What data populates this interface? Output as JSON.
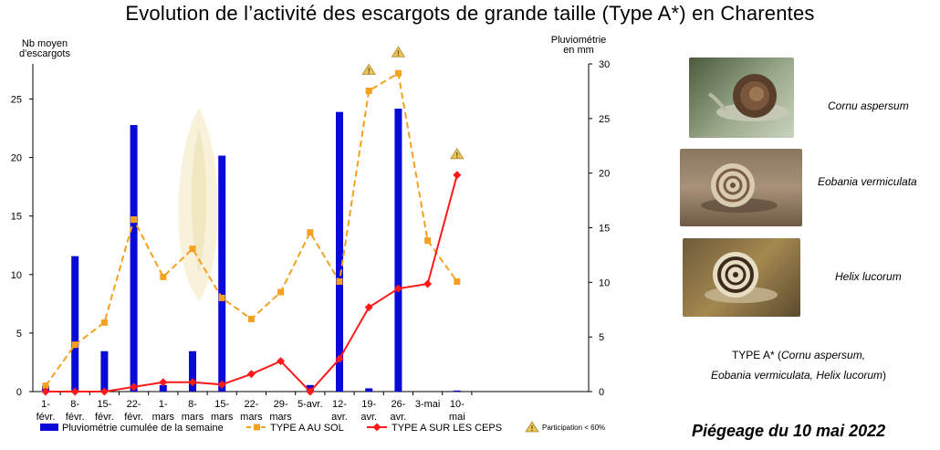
{
  "title": "Evolution de l’activité des escargots de grande taille (Type A*) en Charentes",
  "chart_data": {
    "type": "bar",
    "title": "Evolution de l’activité des escargots de grande taille (Type A*) en Charentes",
    "categories": [
      [
        "1-",
        "févr."
      ],
      [
        "8-",
        "févr."
      ],
      [
        "15-",
        "févr."
      ],
      [
        "22-",
        "févr."
      ],
      [
        "1-",
        "mars"
      ],
      [
        "8-",
        "mars"
      ],
      [
        "15-",
        "mars"
      ],
      [
        "22-",
        "mars"
      ],
      [
        "29-",
        "mars"
      ],
      [
        "5-avr.",
        ""
      ],
      [
        "12-",
        "avr."
      ],
      [
        "19-",
        "avr."
      ],
      [
        "26-",
        "avr."
      ],
      [
        "3-mai",
        ""
      ],
      [
        "10-",
        "mai"
      ]
    ],
    "y_left": {
      "label_lines": [
        "Nb moyen",
        "d'escargots"
      ],
      "range": [
        0,
        28
      ],
      "ticks": [
        0,
        5,
        10,
        15,
        20,
        25
      ]
    },
    "y_right": {
      "label_lines": [
        "Pluviométrie",
        "en mm"
      ],
      "range": [
        0,
        30
      ],
      "ticks": [
        0,
        5,
        10,
        15,
        20,
        25,
        30
      ]
    },
    "grid": false,
    "legend_position": "bottom",
    "series": [
      {
        "name": "Pluviométrie cumulée de la semaine",
        "type": "bar",
        "axis": "right",
        "color": "#0a0ad8",
        "values": [
          0.5,
          12.4,
          3.7,
          24.4,
          0.6,
          3.7,
          21.6,
          0,
          0,
          0.6,
          25.6,
          0.3,
          25.9,
          0,
          0.1
        ]
      },
      {
        "name": "TYPE A AU SOL",
        "type": "line",
        "axis": "left",
        "style": "dashed",
        "marker": "square",
        "color": "#f5a020",
        "values": [
          0.5,
          4.0,
          5.9,
          14.7,
          9.8,
          12.2,
          8.0,
          6.2,
          8.5,
          13.6,
          9.4,
          25.7,
          27.2,
          12.9,
          9.4
        ]
      },
      {
        "name": "TYPE A SUR LES CEPS",
        "type": "line",
        "axis": "left",
        "style": "solid",
        "marker": "diamond",
        "color": "#ff1a1a",
        "values": [
          0,
          0,
          0,
          0.4,
          0.8,
          0.8,
          0.6,
          1.5,
          2.6,
          0,
          2.8,
          7.2,
          8.8,
          9.2,
          18.5
        ]
      }
    ],
    "annotations": {
      "legend_label": "Participation < 60%",
      "icon": "warning-triangle-icon",
      "icon_color": "#e8c35a",
      "weeks": [
        "19-avr.",
        "26-avr.",
        "10-mai"
      ],
      "week_indices": [
        11,
        12,
        14
      ]
    }
  },
  "species": [
    {
      "name": "Cornu aspersum",
      "icon": "snail-photo-cornu"
    },
    {
      "name": "Eobania vermiculata",
      "icon": "snail-photo-eobania"
    },
    {
      "name": "Helix lucorum",
      "icon": "snail-photo-helix"
    }
  ],
  "type_a_note": {
    "prefix": "TYPE A* (",
    "line1_species": "Cornu aspersum,",
    "line2_species": "Eobania vermiculata, Helix lucorum",
    "suffix": ")"
  },
  "date_label": "Piégeage du 10 mai 2022"
}
